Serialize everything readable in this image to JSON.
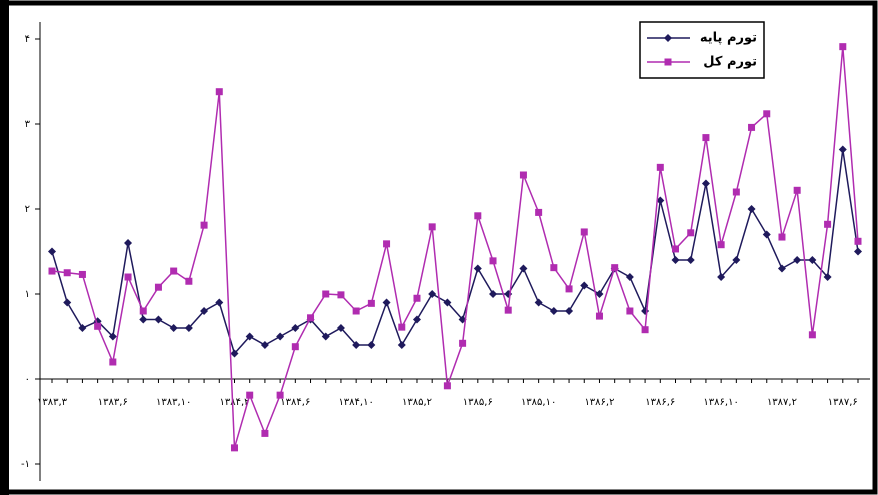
{
  "chart_data": {
    "type": "line",
    "categories": [
      "۱۳۸۳,۳",
      null,
      null,
      null,
      "۱۳۸۳,۶",
      null,
      null,
      null,
      "۱۳۸۳,۱۰",
      null,
      null,
      null,
      "۱۳۸۴,۲",
      null,
      null,
      null,
      "۱۳۸۴,۶",
      null,
      null,
      null,
      "۱۳۸۴,۱۰",
      null,
      null,
      null,
      "۱۳۸۵,۲",
      null,
      null,
      null,
      "۱۳۸۵,۶",
      null,
      null,
      null,
      "۱۳۸۵,۱۰",
      null,
      null,
      null,
      "۱۳۸۶,۲",
      null,
      null,
      null,
      "۱۳۸۶,۶",
      null,
      null,
      null,
      "۱۳۸۶,۱۰",
      null,
      null,
      null,
      "۱۳۸۷,۲",
      null,
      null,
      null,
      "۱۳۸۷,۶",
      null
    ],
    "series": [
      {
        "name": "تورم پایه",
        "color": "#1f1a5c",
        "marker": "diamond",
        "values": [
          1.5,
          0.9,
          0.6,
          0.68,
          0.5,
          1.6,
          0.7,
          0.7,
          0.6,
          0.6,
          0.8,
          0.9,
          0.3,
          0.5,
          0.4,
          0.5,
          0.6,
          0.7,
          0.5,
          0.6,
          0.4,
          0.4,
          0.9,
          0.4,
          0.7,
          1.0,
          0.9,
          0.7,
          1.3,
          1.0,
          1.0,
          1.3,
          0.9,
          0.8,
          0.8,
          1.1,
          1.0,
          1.3,
          1.2,
          0.8,
          2.1,
          1.4,
          1.4,
          2.3,
          1.2,
          1.4,
          2.0,
          1.7,
          1.3,
          1.4,
          1.4,
          1.2,
          2.7,
          1.5
        ]
      },
      {
        "name": "تورم کل",
        "color": "#b02cb0",
        "marker": "square",
        "values": [
          1.27,
          1.25,
          1.23,
          0.62,
          0.2,
          1.2,
          0.8,
          1.08,
          1.27,
          1.15,
          1.81,
          3.38,
          -0.81,
          -0.19,
          -0.64,
          -0.19,
          0.38,
          0.72,
          1.0,
          0.99,
          0.8,
          0.89,
          1.59,
          0.61,
          0.95,
          1.79,
          -0.08,
          0.42,
          1.92,
          1.39,
          0.81,
          2.4,
          1.96,
          1.31,
          1.06,
          1.73,
          0.74,
          1.31,
          0.8,
          0.58,
          2.49,
          1.53,
          1.72,
          2.84,
          1.58,
          2.2,
          2.96,
          3.12,
          1.67,
          2.22,
          0.52,
          1.82,
          3.91,
          1.62
        ]
      }
    ],
    "ylim": [
      -1.2,
      4.2
    ],
    "yticks": [
      {
        "value": -1,
        "label": "-۱"
      },
      {
        "value": 0,
        "label": "۰"
      },
      {
        "value": 1,
        "label": "۱"
      },
      {
        "value": 2,
        "label": "۲"
      },
      {
        "value": 3,
        "label": "۳"
      },
      {
        "value": 4,
        "label": "۴"
      }
    ],
    "grid": false,
    "legend": "upper-right"
  }
}
